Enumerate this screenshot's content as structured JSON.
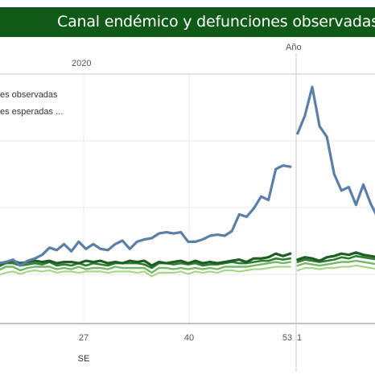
{
  "title": "Canal endémico y defunciones observadas",
  "header": {
    "year_label": "Año",
    "year_value": "2020"
  },
  "legend": [
    {
      "label": "es observadas",
      "color": "#4e79a7"
    },
    {
      "label": "es esperadas ...",
      "color": "#2e7d32"
    }
  ],
  "chart_data": {
    "type": "line",
    "xlabel": "SE",
    "x_ticks": [
      "27",
      "40",
      "53",
      "1"
    ],
    "colors": {
      "observed": "#5b7fa6",
      "band_dark": "#1f5e23",
      "band_mid": "#2e7d32",
      "band_light": "#74b766",
      "band_pale": "#a7d78b"
    },
    "series": [
      {
        "name": "es observadas",
        "values": [
          4,
          5,
          7,
          2,
          6,
          8,
          11,
          17,
          15,
          20,
          14,
          22,
          16,
          20,
          16,
          15,
          20,
          23,
          16,
          22,
          24,
          25,
          29,
          30,
          29,
          30,
          22,
          22,
          24,
          27,
          28,
          27,
          31,
          45,
          43,
          50,
          60,
          57,
          83,
          86,
          85,
          113,
          128,
          152,
          119,
          110,
          79,
          65,
          68,
          53,
          70,
          54,
          42
        ]
      },
      {
        "values": [
          3,
          5,
          6,
          4,
          5,
          6,
          5,
          6,
          4,
          5,
          5,
          4,
          6,
          5,
          6,
          4,
          5,
          4,
          6,
          5,
          6,
          2,
          5,
          4,
          5,
          6,
          4,
          6,
          4,
          5,
          4,
          5,
          6,
          7,
          5,
          8,
          8,
          9,
          12,
          10,
          12,
          7,
          9,
          8,
          6,
          9,
          10,
          12,
          11,
          13,
          11,
          10,
          9
        ]
      },
      {
        "values": [
          1,
          4,
          4,
          2,
          3,
          4,
          3,
          5,
          2,
          3,
          2,
          4,
          2,
          4,
          3,
          2,
          4,
          4,
          4,
          4,
          3,
          0,
          4,
          4,
          3,
          4,
          3,
          4,
          2,
          3,
          3,
          4,
          5,
          4,
          4,
          5,
          6,
          6,
          8,
          7,
          8,
          5,
          7,
          6,
          5,
          6,
          7,
          9,
          8,
          10,
          9,
          8,
          7
        ]
      },
      {
        "values": [
          -2,
          1,
          1,
          -2,
          0,
          1,
          1,
          1,
          -1,
          0,
          -1,
          1,
          -1,
          0,
          0,
          -1,
          1,
          0,
          0,
          0,
          0,
          -4,
          0,
          0,
          -1,
          0,
          -1,
          0,
          -1,
          0,
          -1,
          1,
          1,
          1,
          1,
          2,
          3,
          4,
          5,
          4,
          5,
          2,
          4,
          3,
          2,
          3,
          4,
          5,
          5,
          6,
          5,
          4,
          3
        ]
      },
      {
        "values": [
          -6,
          -4,
          -3,
          -5,
          -3,
          -2,
          -3,
          -2,
          -4,
          -3,
          -3,
          -4,
          -3,
          -3,
          -3,
          -4,
          -3,
          -3,
          -3,
          -4,
          -3,
          -7,
          -4,
          -4,
          -4,
          -3,
          -5,
          -3,
          -4,
          -3,
          -4,
          -2,
          -2,
          -3,
          -2,
          -1,
          -1,
          0,
          1,
          1,
          1,
          -2,
          0,
          0,
          -1,
          0,
          0,
          1,
          1,
          2,
          1,
          0,
          -1
        ]
      }
    ]
  }
}
